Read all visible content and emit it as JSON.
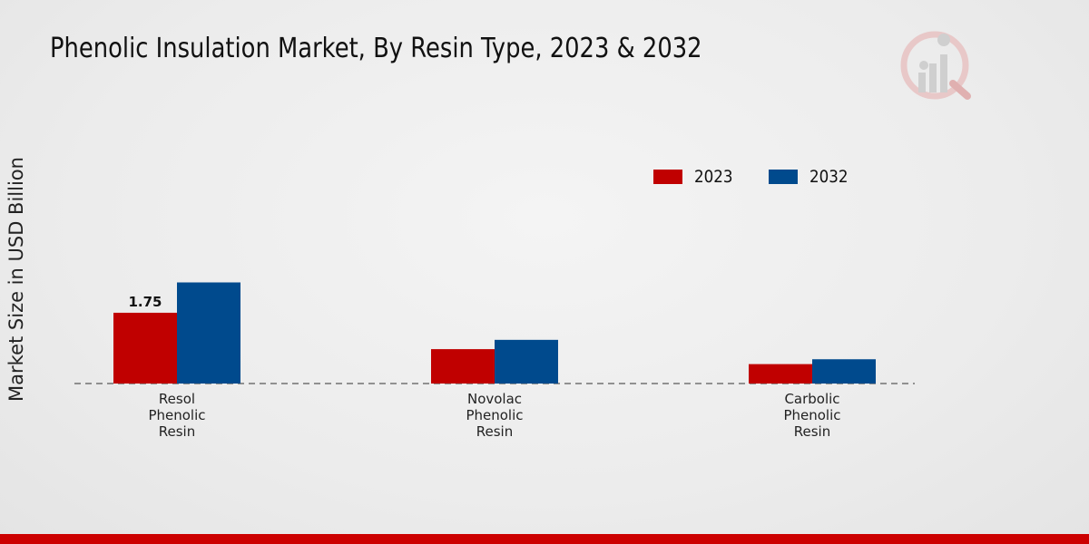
{
  "chart_data": {
    "type": "bar",
    "title": "Phenolic Insulation Market, By Resin Type, 2023 & 2032",
    "ylabel": "Market Size in USD Billion",
    "xlabel": "",
    "categories": [
      [
        "Resol",
        "Phenolic",
        "Resin"
      ],
      [
        "Novolac",
        "Phenolic",
        "Resin"
      ],
      [
        "Carbolic",
        "Phenolic",
        "Resin"
      ]
    ],
    "series": [
      {
        "name": "2023",
        "color": "#c00000",
        "values": [
          1.75,
          0.85,
          0.48
        ]
      },
      {
        "name": "2032",
        "color": "#004a8d",
        "values": [
          2.5,
          1.08,
          0.6
        ]
      }
    ],
    "data_labels": [
      {
        "series": 0,
        "index": 0,
        "text": "1.75"
      }
    ],
    "ylim": [
      0,
      5.0
    ],
    "grid": false,
    "legend": "top-right"
  },
  "colors": {
    "accent_bar": "#cc0000",
    "logo_gray": "#c8c8c8",
    "logo_red": "#d9a0a0"
  }
}
